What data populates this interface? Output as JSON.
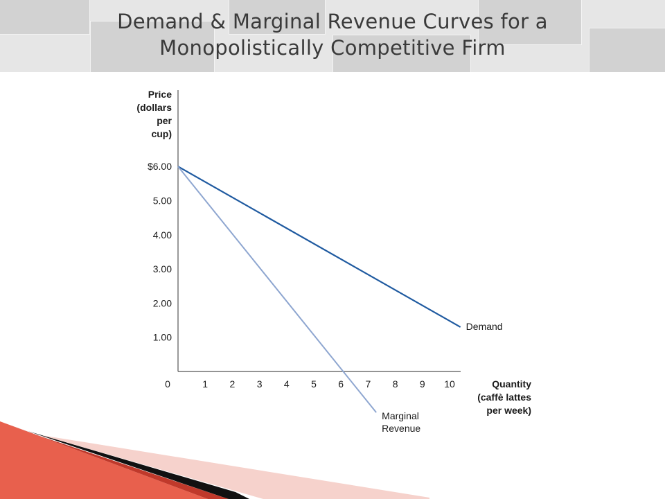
{
  "slide": {
    "title_line1": "Demand & Marginal Revenue Curves for a",
    "title_line2": "Monopolistically Competitive Firm"
  },
  "colors": {
    "demand": "#1f5aa0",
    "marginal_revenue": "#8ea6d0",
    "axis": "#555555",
    "accent_red": "#c0392b"
  },
  "chart_data": {
    "type": "line",
    "ylabel": [
      "Price",
      "(dollars",
      "per",
      "cup)"
    ],
    "xlabel": [
      "Quantity",
      "(caffè lattes",
      "per week)"
    ],
    "xlim": [
      0,
      10.4
    ],
    "ylim": [
      0,
      6
    ],
    "x_ticks": [
      {
        "value": 0,
        "label": "0"
      },
      {
        "value": 1,
        "label": "1"
      },
      {
        "value": 2,
        "label": "2"
      },
      {
        "value": 3,
        "label": "3"
      },
      {
        "value": 4,
        "label": "4"
      },
      {
        "value": 5,
        "label": "5"
      },
      {
        "value": 6,
        "label": "6"
      },
      {
        "value": 7,
        "label": "7"
      },
      {
        "value": 8,
        "label": "8"
      },
      {
        "value": 9,
        "label": "9"
      },
      {
        "value": 10,
        "label": "10"
      }
    ],
    "y_ticks": [
      {
        "value": 6,
        "label": "$6.00"
      },
      {
        "value": 5,
        "label": "5.00"
      },
      {
        "value": 4,
        "label": "4.00"
      },
      {
        "value": 3,
        "label": "3.00"
      },
      {
        "value": 2,
        "label": "2.00"
      },
      {
        "value": 1,
        "label": "1.00"
      }
    ],
    "series": [
      {
        "name": "Demand",
        "label_lines": [
          "Demand"
        ],
        "x": [
          0,
          10.4
        ],
        "y": [
          6.0,
          1.3
        ]
      },
      {
        "name": "Marginal Revenue",
        "label_lines": [
          "Marginal",
          "Revenue"
        ],
        "x": [
          0,
          7.3
        ],
        "y": [
          6.0,
          -1.2
        ]
      }
    ]
  }
}
